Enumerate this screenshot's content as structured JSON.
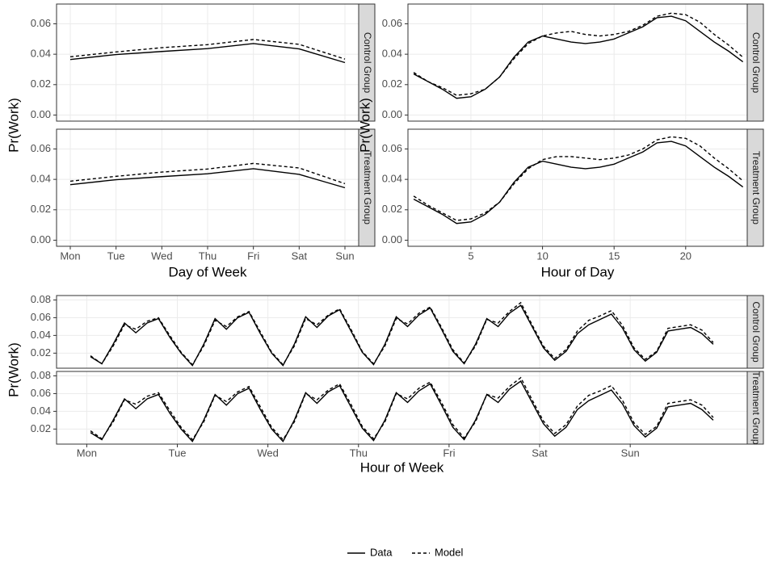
{
  "chart_data": [
    {
      "type": "line",
      "x_label": "Day of Week",
      "y_label": "Pr(Work)",
      "categories": [
        "Mon",
        "Tue",
        "Wed",
        "Thu",
        "Fri",
        "Sat",
        "Sun"
      ],
      "ylim": [
        -0.004,
        0.073
      ],
      "yticks": [
        {
          "value": 0,
          "label": "0.00"
        },
        0.02,
        0.04,
        0.06
      ],
      "grid": true,
      "facets": [
        {
          "label": "Control Group",
          "series": [
            {
              "name": "Data",
              "color": "#000000",
              "linestyle": "solid",
              "values": [
                0.0365,
                0.0398,
                0.0418,
                0.0437,
                0.047,
                0.0435,
                0.0345
              ]
            },
            {
              "name": "Model",
              "color": "#000000",
              "linestyle": "dashed",
              "values": [
                0.0383,
                0.0415,
                0.0443,
                0.0463,
                0.0497,
                0.0465,
                0.0368
              ]
            }
          ]
        },
        {
          "label": "Treatment Group",
          "series": [
            {
              "name": "Data",
              "color": "#000000",
              "linestyle": "solid",
              "values": [
                0.0365,
                0.0398,
                0.0418,
                0.0437,
                0.047,
                0.0433,
                0.0345
              ]
            },
            {
              "name": "Model",
              "color": "#000000",
              "linestyle": "dashed",
              "values": [
                0.0388,
                0.042,
                0.0448,
                0.0468,
                0.0505,
                0.0475,
                0.0372
              ]
            }
          ]
        }
      ]
    },
    {
      "type": "line",
      "x_label": "Hour of Day",
      "y_label": "Pr(Work)",
      "x": [
        1,
        2,
        3,
        4,
        5,
        6,
        7,
        8,
        9,
        10,
        11,
        12,
        13,
        14,
        15,
        16,
        17,
        18,
        19,
        20,
        21,
        22,
        23,
        24
      ],
      "xlim": [
        0.6,
        24.3
      ],
      "xticks": [
        5,
        10,
        15,
        20
      ],
      "ylim": [
        -0.004,
        0.073
      ],
      "yticks": [
        {
          "value": 0,
          "label": "0.00"
        },
        0.02,
        0.04,
        0.06
      ],
      "grid": true,
      "facets": [
        {
          "label": "Control Group",
          "series": [
            {
              "name": "Data",
              "color": "#000000",
              "linestyle": "solid",
              "values": [
                0.027,
                0.022,
                0.017,
                0.011,
                0.012,
                0.017,
                0.025,
                0.038,
                0.048,
                0.052,
                0.05,
                0.048,
                0.047,
                0.048,
                0.05,
                0.054,
                0.058,
                0.064,
                0.065,
                0.062,
                0.055,
                0.048,
                0.042,
                0.035
              ]
            },
            {
              "name": "Model",
              "color": "#000000",
              "linestyle": "dashed",
              "values": [
                0.028,
                0.022,
                0.018,
                0.013,
                0.014,
                0.017,
                0.025,
                0.037,
                0.047,
                0.052,
                0.054,
                0.055,
                0.053,
                0.052,
                0.053,
                0.055,
                0.059,
                0.065,
                0.067,
                0.066,
                0.061,
                0.053,
                0.046,
                0.038
              ]
            }
          ]
        },
        {
          "label": "Treatment Group",
          "series": [
            {
              "name": "Data",
              "color": "#000000",
              "linestyle": "solid",
              "values": [
                0.027,
                0.022,
                0.017,
                0.011,
                0.012,
                0.017,
                0.025,
                0.038,
                0.048,
                0.052,
                0.05,
                0.048,
                0.047,
                0.048,
                0.05,
                0.054,
                0.058,
                0.064,
                0.065,
                0.062,
                0.055,
                0.048,
                0.042,
                0.035
              ]
            },
            {
              "name": "Model",
              "color": "#000000",
              "linestyle": "dashed",
              "values": [
                0.029,
                0.023,
                0.018,
                0.013,
                0.014,
                0.018,
                0.025,
                0.037,
                0.047,
                0.053,
                0.055,
                0.055,
                0.054,
                0.053,
                0.054,
                0.056,
                0.06,
                0.066,
                0.068,
                0.067,
                0.062,
                0.054,
                0.047,
                0.039
              ]
            }
          ]
        }
      ]
    },
    {
      "type": "line",
      "x_label": "Hour of Week",
      "y_label": "Pr(Work)",
      "x": [
        1,
        4,
        7,
        10,
        13,
        16,
        19,
        22,
        25,
        28,
        31,
        34,
        37,
        40,
        43,
        46,
        49,
        52,
        55,
        58,
        61,
        64,
        67,
        70,
        73,
        76,
        79,
        82,
        85,
        88,
        91,
        94,
        97,
        100,
        103,
        106,
        109,
        112,
        115,
        118,
        121,
        124,
        127,
        130,
        133,
        136,
        139,
        142,
        145,
        148,
        151,
        154,
        157,
        160,
        163,
        166
      ],
      "xlim": [
        -8,
        175
      ],
      "xticks": [
        {
          "value": 0,
          "label": "Mon"
        },
        {
          "value": 24,
          "label": "Tue"
        },
        {
          "value": 48,
          "label": "Wed"
        },
        {
          "value": 72,
          "label": "Thu"
        },
        {
          "value": 96,
          "label": "Fri"
        },
        {
          "value": 120,
          "label": "Sat"
        },
        {
          "value": 144,
          "label": "Sun"
        }
      ],
      "ylim": [
        0.003,
        0.085
      ],
      "yticks": [
        0.02,
        0.04,
        0.06,
        0.08
      ],
      "grid": true,
      "facets": [
        {
          "label": "Control Group",
          "series": [
            {
              "name": "Data",
              "color": "#000000",
              "linestyle": "solid",
              "values": [
                0.016,
                0.008,
                0.03,
                0.054,
                0.043,
                0.054,
                0.059,
                0.038,
                0.02,
                0.006,
                0.03,
                0.059,
                0.047,
                0.06,
                0.066,
                0.042,
                0.02,
                0.006,
                0.03,
                0.061,
                0.049,
                0.062,
                0.069,
                0.045,
                0.021,
                0.007,
                0.03,
                0.061,
                0.05,
                0.063,
                0.071,
                0.047,
                0.022,
                0.008,
                0.03,
                0.059,
                0.05,
                0.065,
                0.074,
                0.05,
                0.026,
                0.012,
                0.022,
                0.042,
                0.052,
                0.058,
                0.064,
                0.048,
                0.024,
                0.011,
                0.021,
                0.045,
                0.047,
                0.049,
                0.042,
                0.03
              ]
            },
            {
              "name": "Model",
              "color": "#000000",
              "linestyle": "dashed",
              "values": [
                0.017,
                0.008,
                0.028,
                0.052,
                0.047,
                0.056,
                0.06,
                0.04,
                0.021,
                0.007,
                0.028,
                0.057,
                0.05,
                0.061,
                0.067,
                0.044,
                0.021,
                0.007,
                0.028,
                0.059,
                0.052,
                0.063,
                0.07,
                0.047,
                0.022,
                0.008,
                0.028,
                0.059,
                0.053,
                0.065,
                0.072,
                0.049,
                0.024,
                0.009,
                0.028,
                0.058,
                0.054,
                0.067,
                0.077,
                0.052,
                0.028,
                0.014,
                0.024,
                0.045,
                0.057,
                0.062,
                0.068,
                0.051,
                0.026,
                0.013,
                0.022,
                0.048,
                0.05,
                0.052,
                0.046,
                0.032
              ]
            }
          ]
        },
        {
          "label": "Treatment Group",
          "series": [
            {
              "name": "Data",
              "color": "#000000",
              "linestyle": "solid",
              "values": [
                0.016,
                0.008,
                0.03,
                0.054,
                0.043,
                0.054,
                0.059,
                0.038,
                0.02,
                0.006,
                0.03,
                0.059,
                0.047,
                0.06,
                0.066,
                0.042,
                0.02,
                0.006,
                0.03,
                0.061,
                0.049,
                0.062,
                0.069,
                0.045,
                0.021,
                0.007,
                0.03,
                0.061,
                0.05,
                0.063,
                0.071,
                0.047,
                0.022,
                0.008,
                0.03,
                0.059,
                0.05,
                0.065,
                0.074,
                0.05,
                0.026,
                0.012,
                0.022,
                0.042,
                0.052,
                0.058,
                0.064,
                0.048,
                0.024,
                0.011,
                0.021,
                0.045,
                0.047,
                0.049,
                0.042,
                0.03
              ]
            },
            {
              "name": "Model",
              "color": "#000000",
              "linestyle": "dashed",
              "values": [
                0.018,
                0.009,
                0.028,
                0.053,
                0.048,
                0.057,
                0.061,
                0.041,
                0.022,
                0.008,
                0.028,
                0.058,
                0.051,
                0.062,
                0.068,
                0.045,
                0.022,
                0.008,
                0.028,
                0.06,
                0.053,
                0.064,
                0.071,
                0.048,
                0.023,
                0.009,
                0.028,
                0.06,
                0.054,
                0.066,
                0.073,
                0.05,
                0.025,
                0.01,
                0.028,
                0.059,
                0.055,
                0.068,
                0.078,
                0.053,
                0.029,
                0.015,
                0.025,
                0.046,
                0.058,
                0.063,
                0.069,
                0.052,
                0.027,
                0.014,
                0.023,
                0.049,
                0.051,
                0.053,
                0.047,
                0.033
              ]
            }
          ]
        }
      ]
    }
  ]
}
